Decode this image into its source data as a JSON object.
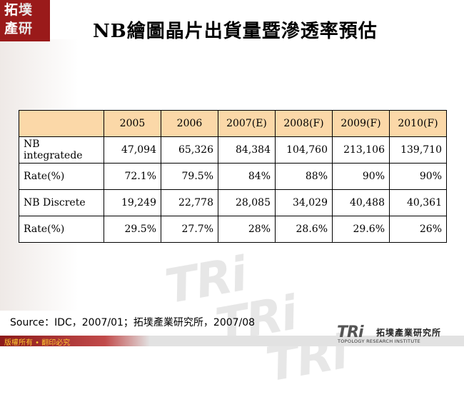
{
  "logo": {
    "line1": "拓",
    "line1b": "墣",
    "line2": "產",
    "line2b": "研"
  },
  "title": "NB繪圖晶片出貨量暨滲透率預估",
  "table": {
    "headers": [
      "",
      "2005",
      "2006",
      "2007(E)",
      "2008(F)",
      "2009(F)",
      "2010(F)"
    ],
    "rows": [
      {
        "label": "NB integratede",
        "values": [
          "47,094",
          "65,326",
          "84,384",
          "104,760",
          "213,106",
          "139,710"
        ]
      },
      {
        "label": "Rate(%)",
        "values": [
          "72.1%",
          "79.5%",
          "84%",
          "88%",
          "90%",
          "90%"
        ]
      },
      {
        "label": "NB Discrete",
        "values": [
          "19,249",
          "22,778",
          "28,085",
          "34,029",
          "40,488",
          "40,361"
        ]
      },
      {
        "label": "Rate(%)",
        "values": [
          "29.5%",
          "27.7%",
          "28%",
          "28.6%",
          "29.6%",
          "26%"
        ]
      }
    ]
  },
  "source": "Source：IDC，2007/01；拓墣產業研究所，2007/08",
  "footer": {
    "copyright": "版權所有 • 翻印必究",
    "logo_mark": "TRi",
    "logo_name": "拓墣產業研究所",
    "logo_en": "TOPOLOGY RESEARCH INSTITUTE"
  },
  "watermark": {
    "text": "TRi"
  }
}
